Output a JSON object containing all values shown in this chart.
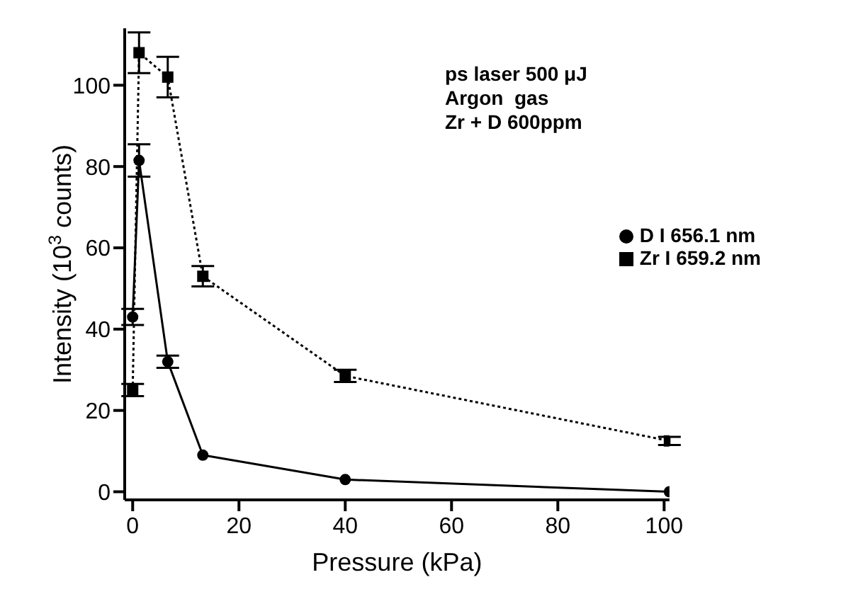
{
  "chart_data": {
    "type": "line",
    "xlabel": "Pressure (kPa)",
    "ylabel": "Intensity (10$^{3}$ counts)",
    "annotations": [
      "ps laser 500 μJ",
      "Argon  gas",
      "Zr + D 600ppm"
    ],
    "x": [
      0,
      1.2,
      6.6,
      13.2,
      40,
      101
    ],
    "series": [
      {
        "name": "D I 656.1 nm",
        "color": "#000000",
        "marker": "circle",
        "line_style": "solid",
        "values": [
          43,
          81.5,
          32,
          9,
          3,
          0
        ],
        "errors": [
          2,
          4,
          1.5,
          null,
          null,
          null
        ]
      },
      {
        "name": "Zr I 659.2 nm",
        "color": "#000000",
        "marker": "square",
        "line_style": "dotted",
        "values": [
          25,
          108,
          102,
          53,
          28.5,
          12.5
        ],
        "errors": [
          1.5,
          5,
          5,
          2.5,
          1.5,
          1
        ]
      }
    ],
    "xlim": [
      -1.5,
      101
    ],
    "xticks": [
      0,
      20,
      40,
      60,
      80,
      100
    ],
    "ylim": [
      -2,
      114
    ],
    "yticks": [
      0,
      20,
      40,
      60,
      80,
      100
    ],
    "legend": "right"
  }
}
